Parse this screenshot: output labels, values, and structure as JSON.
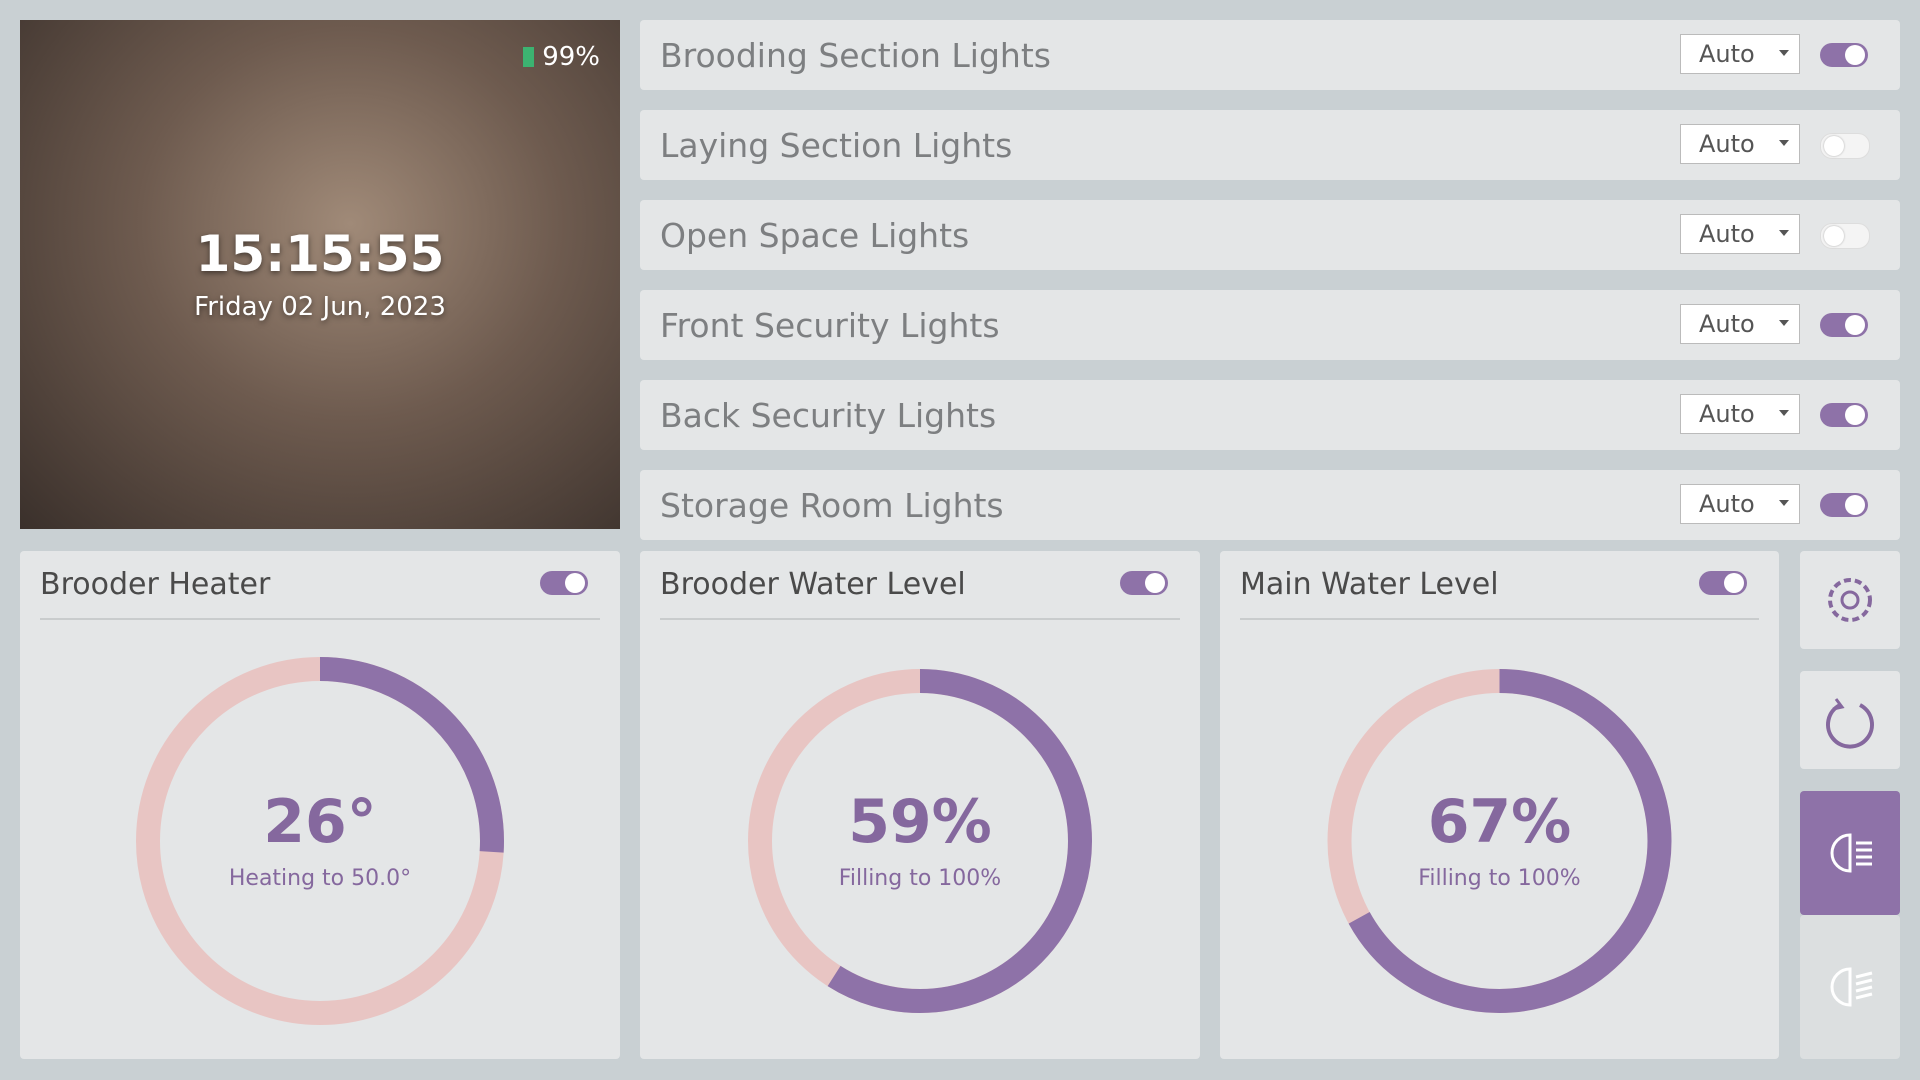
{
  "header": {
    "battery": "99%",
    "time": "15:15:55",
    "date": "Friday 02 Jun, 2023"
  },
  "lights": [
    {
      "label": "Brooding Section Lights",
      "mode": "Auto",
      "on": true
    },
    {
      "label": "Laying Section Lights",
      "mode": "Auto",
      "on": false
    },
    {
      "label": "Open Space Lights",
      "mode": "Auto",
      "on": false
    },
    {
      "label": "Front Security Lights",
      "mode": "Auto",
      "on": true
    },
    {
      "label": "Back Security Lights",
      "mode": "Auto",
      "on": true
    },
    {
      "label": "Storage Room Lights",
      "mode": "Auto",
      "on": true
    }
  ],
  "gauges": [
    {
      "title": "Brooder Heater",
      "on": true,
      "value": 26,
      "value_label": "26°",
      "caption": "Heating to 50.0°"
    },
    {
      "title": "Brooder Water Level",
      "on": true,
      "value": 59,
      "value_label": "59%",
      "caption": "Filling to 100%"
    },
    {
      "title": "Main Water Level",
      "on": true,
      "value": 67,
      "value_label": "67%",
      "caption": "Filling to 100%"
    }
  ]
}
